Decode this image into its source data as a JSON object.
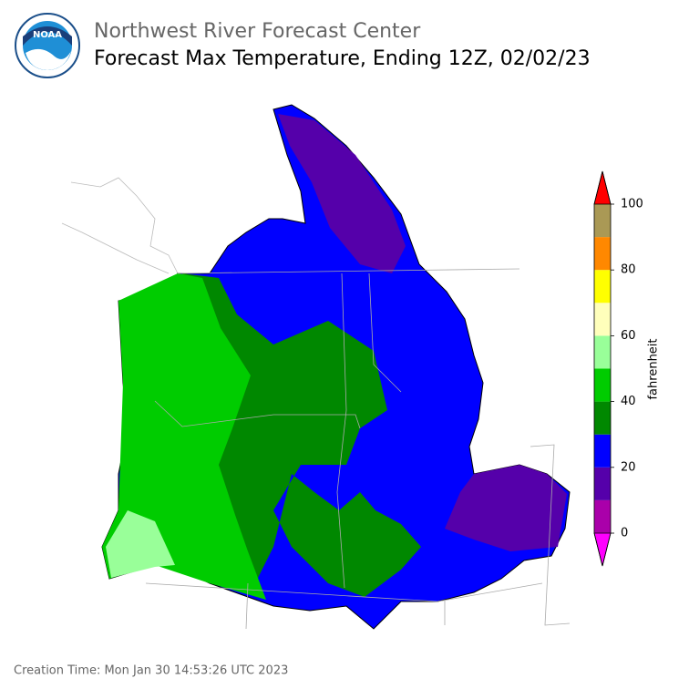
{
  "header": {
    "logo_text": "NOAA",
    "title": "Northwest River Forecast Center",
    "subtitle": "Forecast Max Temperature, Ending 12Z, 02/02/23"
  },
  "colorbar": {
    "label": "fahrenheit",
    "bounds": [
      0,
      10,
      20,
      30,
      40,
      50,
      60,
      70,
      80,
      90,
      100
    ],
    "colors": [
      "#aa00aa",
      "#5500aa",
      "#0000ff",
      "#008800",
      "#00cc00",
      "#99ff99",
      "#ffffbb",
      "#ffff00",
      "#ff8800",
      "#aa9955"
    ],
    "under_color": "#ff00ff",
    "over_color": "#ff0000",
    "ticks": [
      0,
      20,
      40,
      60,
      80,
      100
    ]
  },
  "footer": {
    "creation_time": "Creation Time: Mon Jan 30 14:53:26 UTC 2023"
  }
}
